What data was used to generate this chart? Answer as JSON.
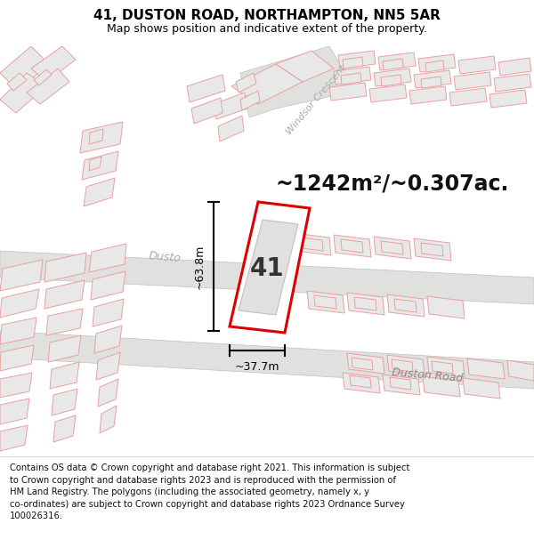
{
  "title_line1": "41, DUSTON ROAD, NORTHAMPTON, NN5 5AR",
  "title_line2": "Map shows position and indicative extent of the property.",
  "area_text": "~1242m²/~0.307ac.",
  "label_number": "41",
  "dim_height": "~63.8m",
  "dim_width": "~37.7m",
  "road_label1": "Duston Road",
  "road_label2": "Dusto",
  "road_label3": "Windsor Crescent",
  "copyright_text": "Contains OS data © Crown copyright and database right 2021. This information is subject\nto Crown copyright and database rights 2023 and is reproduced with the permission of\nHM Land Registry. The polygons (including the associated geometry, namely x, y\nco-ordinates) are subject to Crown copyright and database rights 2023 Ordnance Survey\n100026316.",
  "map_bg": "#f7f7f5",
  "building_fill": "#e8e8e8",
  "building_edge": "#e8a0a0",
  "road_fill": "#e8e8e8",
  "road_edge": "#b8b8b8",
  "highlight_fill": "#ffffff",
  "highlight_edge": "#dd0000",
  "inner_fill": "#e0e0e0",
  "inner_edge": "#c0c0c0",
  "title_fontsize": 11,
  "subtitle_fontsize": 9,
  "area_fontsize": 17,
  "dim_fontsize": 9,
  "label_fontsize": 20,
  "road_fontsize": 9,
  "copyright_fontsize": 7.2,
  "fig_width": 6.0,
  "fig_height": 6.25,
  "dpi": 100
}
